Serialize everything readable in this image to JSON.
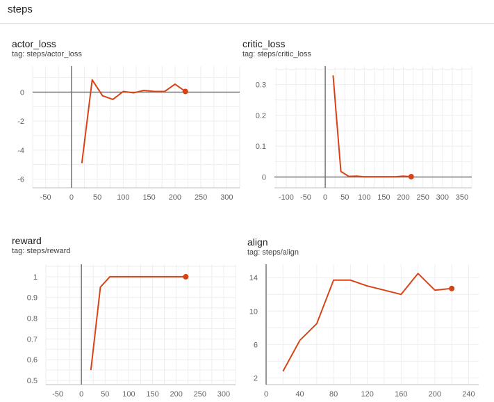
{
  "header": {
    "title": "steps"
  },
  "charts": [
    {
      "title": "actor_loss",
      "tag": "tag: steps/actor_loss",
      "chart_data": {
        "type": "line",
        "color": "#d84315",
        "xlim": [
          -75,
          325
        ],
        "ylim": [
          -6.6,
          1.8
        ],
        "xticks": [
          -50,
          0,
          50,
          100,
          150,
          200,
          250,
          300
        ],
        "yticks": [
          0,
          -2,
          -4,
          -6
        ],
        "x": [
          20,
          40,
          60,
          80,
          100,
          120,
          140,
          160,
          180,
          200,
          220
        ],
        "y": [
          -4.9,
          0.85,
          -0.25,
          -0.5,
          0.05,
          -0.05,
          0.12,
          0.05,
          0.05,
          0.55,
          0.05
        ]
      }
    },
    {
      "title": "critic_loss",
      "tag": "tag: steps/critic_loss",
      "chart_data": {
        "type": "line",
        "color": "#d84315",
        "xlim": [
          -130,
          375
        ],
        "ylim": [
          -0.035,
          0.36
        ],
        "xticks": [
          -100,
          -50,
          0,
          50,
          100,
          150,
          200,
          250,
          300,
          350
        ],
        "yticks": [
          0.3,
          0.2,
          0.1,
          0
        ],
        "x": [
          20,
          40,
          60,
          80,
          100,
          120,
          140,
          160,
          180,
          200,
          220
        ],
        "y": [
          0.33,
          0.018,
          0.002,
          0.003,
          0.001,
          0.001,
          0.001,
          0.001,
          0.001,
          0.003,
          0.001
        ]
      }
    },
    {
      "title": "reward",
      "tag": "tag: steps/reward",
      "chart_data": {
        "type": "line",
        "color": "#d84315",
        "xlim": [
          -75,
          325
        ],
        "ylim": [
          0.48,
          1.06
        ],
        "xticks": [
          -50,
          0,
          50,
          100,
          150,
          200,
          250,
          300
        ],
        "yticks": [
          1,
          0.9,
          0.8,
          0.7,
          0.6,
          0.5
        ],
        "x": [
          20,
          40,
          60,
          80,
          100,
          120,
          140,
          160,
          180,
          200,
          220
        ],
        "y": [
          0.55,
          0.95,
          1,
          1,
          1,
          1,
          1,
          1,
          1,
          1,
          1
        ]
      }
    },
    {
      "title": "align",
      "tag": "tag: steps/align",
      "chart_data": {
        "type": "line",
        "color": "#d84315",
        "xlim": [
          0,
          252
        ],
        "ylim": [
          1.2,
          15.6
        ],
        "xticks": [
          0,
          40,
          80,
          120,
          160,
          200,
          240
        ],
        "yticks": [
          14,
          10,
          6,
          2
        ],
        "x": [
          20,
          40,
          60,
          80,
          100,
          120,
          140,
          160,
          180,
          200,
          220
        ],
        "y": [
          2.8,
          6.5,
          8.5,
          13.7,
          13.7,
          13,
          12.5,
          12,
          14.5,
          12.5,
          12.7
        ]
      }
    }
  ]
}
